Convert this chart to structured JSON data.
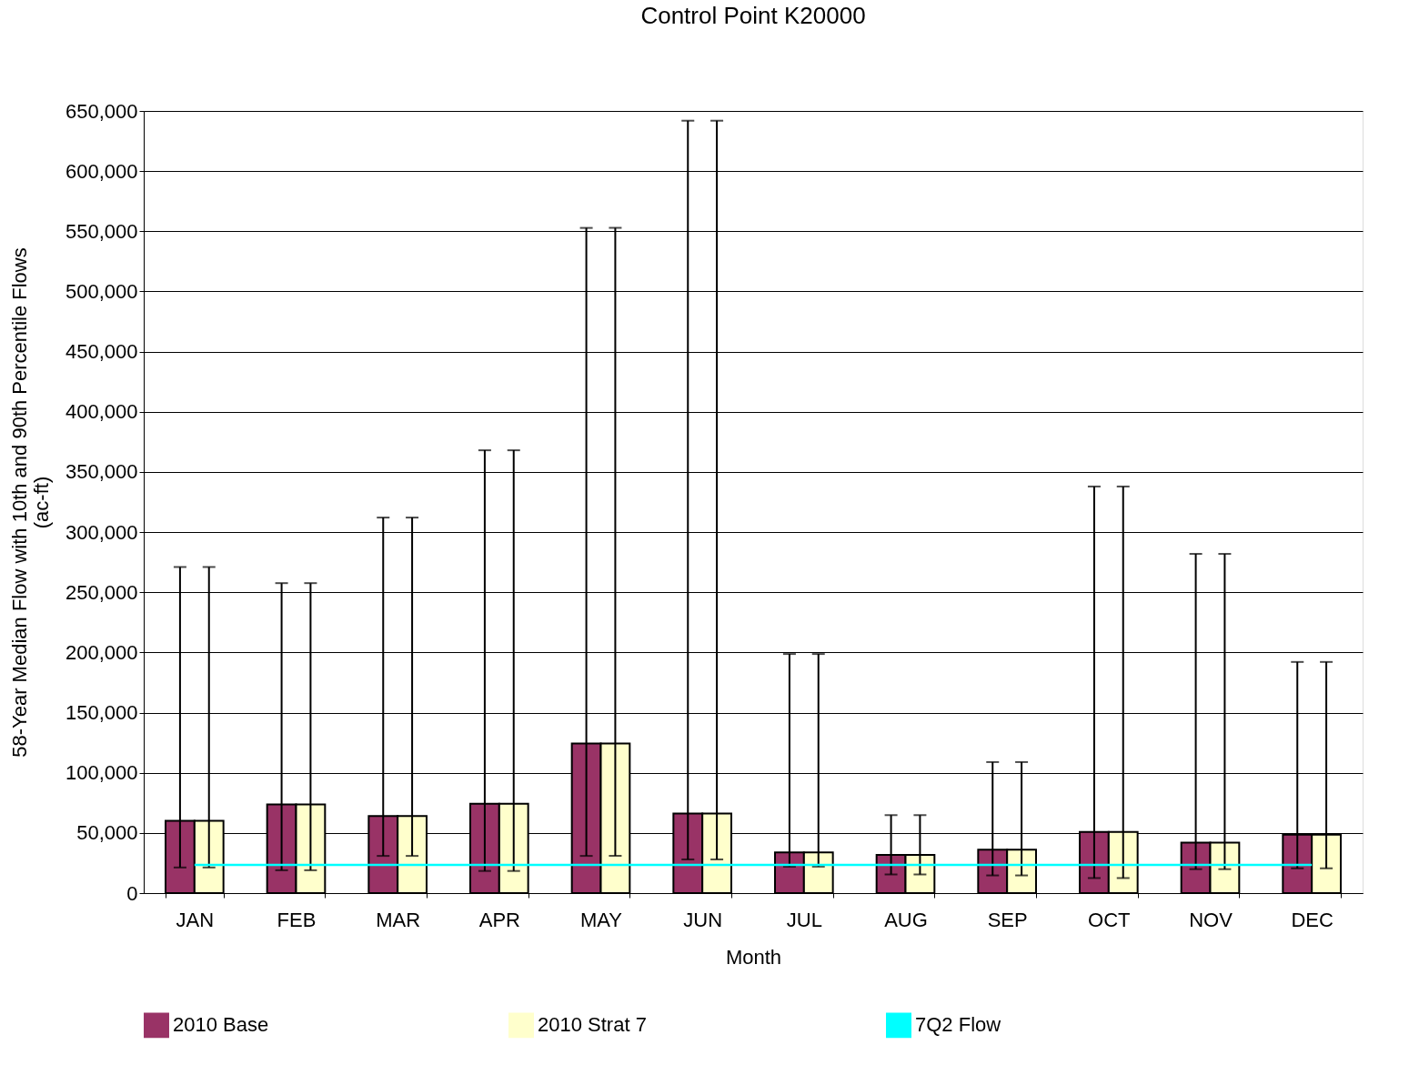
{
  "chart_data": {
    "type": "bar",
    "title": "Control Point K20000",
    "xlabel": "Month",
    "ylabel": "58-Year Median Flow with 10th and 90th Percentile Flows\n(ac-ft)",
    "categories": [
      "JAN",
      "FEB",
      "MAR",
      "APR",
      "MAY",
      "JUN",
      "JUL",
      "AUG",
      "SEP",
      "OCT",
      "NOV",
      "DEC"
    ],
    "series": [
      {
        "name": "2010 Base",
        "color": "#993366",
        "values": [
          60000,
          73600,
          64000,
          74300,
          124400,
          66200,
          33900,
          31700,
          36100,
          50800,
          42000,
          48600
        ],
        "errors": [
          [
            21300,
            271000
          ],
          [
            19000,
            257600
          ],
          [
            30900,
            312100
          ],
          [
            18400,
            368000
          ],
          [
            30900,
            552800
          ],
          [
            28000,
            641900
          ],
          [
            22000,
            198700
          ],
          [
            15500,
            64800
          ],
          [
            14700,
            108900
          ],
          [
            12500,
            337900
          ],
          [
            19900,
            281900
          ],
          [
            20600,
            192100
          ]
        ]
      },
      {
        "name": "2010 Strat 7",
        "color": "#ffffcc",
        "values": [
          60000,
          73600,
          64000,
          74300,
          124400,
          66200,
          33900,
          31700,
          36100,
          50800,
          42000,
          48600
        ],
        "errors": [
          [
            21300,
            271000
          ],
          [
            19000,
            257600
          ],
          [
            30900,
            312100
          ],
          [
            18400,
            368000
          ],
          [
            30900,
            552800
          ],
          [
            28000,
            641900
          ],
          [
            22000,
            198700
          ],
          [
            15500,
            64800
          ],
          [
            14700,
            108900
          ],
          [
            12500,
            337900
          ],
          [
            19900,
            281900
          ],
          [
            20600,
            192100
          ]
        ]
      },
      {
        "name": "7Q2 Flow",
        "type": "line",
        "color": "#00ffff",
        "values": [
          23500,
          23500,
          23500,
          23500,
          23500,
          23500,
          23500,
          23500,
          23500,
          23500,
          23500,
          23500
        ]
      }
    ],
    "ylim": [
      0,
      650000
    ],
    "yticks": [
      0,
      {
        "value": 50000,
        "label": "50,000"
      },
      {
        "value": 100000,
        "label": "100,000"
      },
      {
        "value": 150000,
        "label": "150,000"
      },
      {
        "value": 200000,
        "label": "200,000"
      },
      {
        "value": 250000,
        "label": "250,000"
      },
      {
        "value": 300000,
        "label": "300,000"
      },
      {
        "value": 350000,
        "label": "350,000"
      },
      {
        "value": 400000,
        "label": "400,000"
      },
      {
        "value": 450000,
        "label": "450,000"
      },
      {
        "value": 500000,
        "label": "500,000"
      },
      {
        "value": 550000,
        "label": "550,000"
      },
      {
        "value": 600000,
        "label": "600,000"
      },
      {
        "value": 650000,
        "label": "650,000"
      }
    ],
    "grid": "y",
    "legend": "bottom"
  }
}
